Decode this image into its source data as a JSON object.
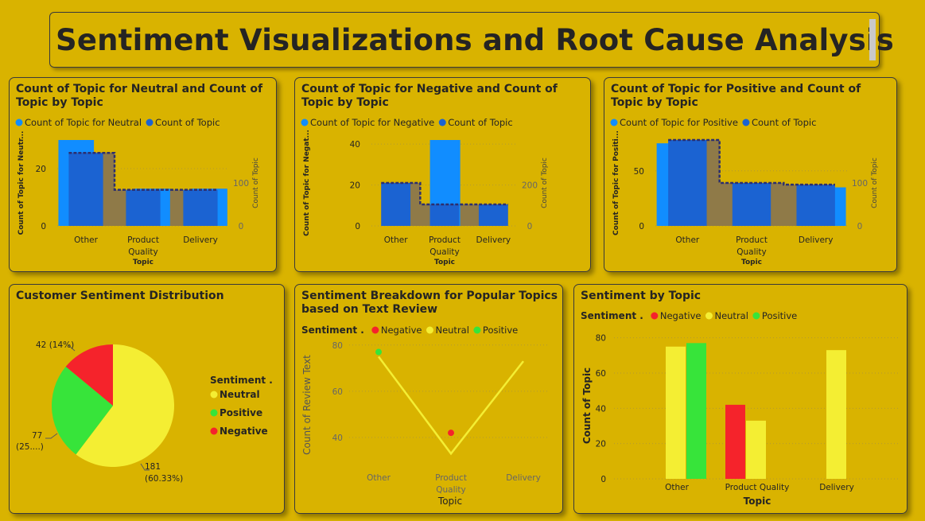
{
  "page_title": "Sentiment Visualizations and Root Cause Analysis",
  "colors": {
    "background": "#d9b300",
    "light_blue": "#118dff",
    "dark_blue": "#1b63d2",
    "olive": "#8f7a48",
    "negative": "#f5232b",
    "neutral": "#f4ee33",
    "positive": "#37e43a"
  },
  "chart_data": [
    {
      "type": "bar",
      "title": "Count of Topic for Neutral and Count of Topic by Topic",
      "legend": [
        "Count of Topic for Neutral",
        "Count of Topic"
      ],
      "categories": [
        "Other",
        "Product Quality",
        "Delivery"
      ],
      "xlabel": "Topic",
      "ylabel": "Count of Topic for Neutr...",
      "y2label": "Count of Topic",
      "ylim": [
        0,
        30
      ],
      "y2lim": [
        0,
        200
      ],
      "yticks": [
        "0",
        "20"
      ],
      "y2ticks": [
        "0",
        "100"
      ],
      "series": [
        {
          "name": "Count of Topic for Neutral",
          "values": [
            30,
            13,
            13
          ]
        },
        {
          "name": "Count of Topic",
          "values": [
            170,
            84,
            84
          ]
        }
      ]
    },
    {
      "type": "bar",
      "title": "Count of Topic for Negative and Count of Topic by Topic",
      "legend": [
        "Count of Topic for Negative",
        "Count of Topic"
      ],
      "categories": [
        "Other",
        "Product Quality",
        "Delivery"
      ],
      "xlabel": "Topic",
      "ylabel": "Count of Topic for Negat...",
      "y2label": "Count of Topic",
      "ylim": [
        0,
        42
      ],
      "y2lim": [
        0,
        420
      ],
      "yticks": [
        "0",
        "20",
        "40"
      ],
      "y2ticks": [
        "0",
        "200"
      ],
      "series": [
        {
          "name": "Count of Topic for Negative",
          "values": [
            0,
            42,
            0
          ]
        },
        {
          "name": "Count of Topic",
          "values": [
            210,
            105,
            105
          ]
        }
      ]
    },
    {
      "type": "bar",
      "title": "Count of Topic for Positive and Count of Topic by Topic",
      "legend": [
        "Count of Topic for Positive",
        "Count of Topic"
      ],
      "categories": [
        "Other",
        "Product Quality",
        "Delivery"
      ],
      "xlabel": "Topic",
      "ylabel": "Count of Topic for Positi...",
      "y2label": "Count of Topic",
      "ylim": [
        0,
        78
      ],
      "y2lim": [
        0,
        200
      ],
      "yticks": [
        "0",
        "50"
      ],
      "y2ticks": [
        "0",
        "100"
      ],
      "series": [
        {
          "name": "Count of Topic for Positive",
          "values": [
            75,
            0,
            35
          ]
        },
        {
          "name": "Count of Topic",
          "values": [
            200,
            100,
            96
          ]
        }
      ]
    },
    {
      "type": "pie",
      "title": "Customer Sentiment Distribution",
      "legend_title": "Sentiment .",
      "labels": [
        "Neutral",
        "Positive",
        "Negative"
      ],
      "values": [
        181,
        77,
        42
      ],
      "data_labels": [
        "181\n(60.33%)",
        "77\n(25....)",
        "42 (14%)"
      ]
    },
    {
      "type": "line",
      "title": "Sentiment Breakdown for Popular Topics based on Text Review",
      "legend_title": "Sentiment .",
      "legend": [
        "Negative",
        "Neutral",
        "Positive"
      ],
      "categories": [
        "Other",
        "Product Quality",
        "Delivery"
      ],
      "xlabel": "Topic",
      "ylabel": "Count of Review Text",
      "ylim": [
        30,
        82
      ],
      "yticks": [
        "40",
        "60",
        "80"
      ],
      "series": [
        {
          "name": "Negative",
          "values": [
            null,
            42,
            null
          ]
        },
        {
          "name": "Neutral",
          "values": [
            75,
            33,
            73
          ]
        },
        {
          "name": "Positive",
          "values": [
            77,
            null,
            null
          ]
        }
      ]
    },
    {
      "type": "bar",
      "title": "Sentiment by Topic",
      "legend_title": "Sentiment .",
      "legend": [
        "Negative",
        "Neutral",
        "Positive"
      ],
      "categories": [
        "Other",
        "Product Quality",
        "Delivery"
      ],
      "xlabel": "Topic",
      "ylabel": "Count of Topic",
      "ylim": [
        0,
        83
      ],
      "yticks": [
        "0",
        "20",
        "40",
        "60",
        "80"
      ],
      "series": [
        {
          "name": "Negative",
          "values": [
            null,
            42,
            null
          ]
        },
        {
          "name": "Neutral",
          "values": [
            75,
            33,
            73
          ]
        },
        {
          "name": "Positive",
          "values": [
            77,
            null,
            null
          ]
        }
      ]
    }
  ]
}
